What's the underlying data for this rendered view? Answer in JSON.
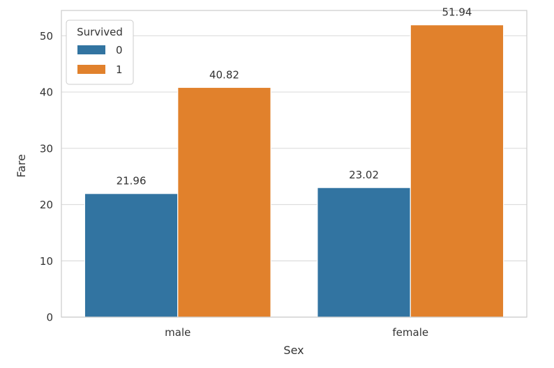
{
  "chart_data": {
    "type": "bar",
    "xlabel": "Sex",
    "ylabel": "Fare",
    "categories": [
      "male",
      "female"
    ],
    "series": [
      {
        "name": "0",
        "values": [
          21.96,
          23.02
        ],
        "labels": [
          "21.96",
          "23.02"
        ]
      },
      {
        "name": "1",
        "values": [
          40.82,
          51.94
        ],
        "labels": [
          "40.82",
          "51.94"
        ]
      }
    ],
    "ylim": [
      0,
      54.5
    ],
    "yticks": [
      "0",
      "10",
      "20",
      "30",
      "40",
      "50"
    ],
    "legend": {
      "title": "Survived",
      "placement": "top-left"
    },
    "grid": "horizontal",
    "colors": {
      "series_0": "#3274a1",
      "series_1": "#e1812c",
      "grid": "#dddddd",
      "frame": "#cccccc"
    }
  }
}
